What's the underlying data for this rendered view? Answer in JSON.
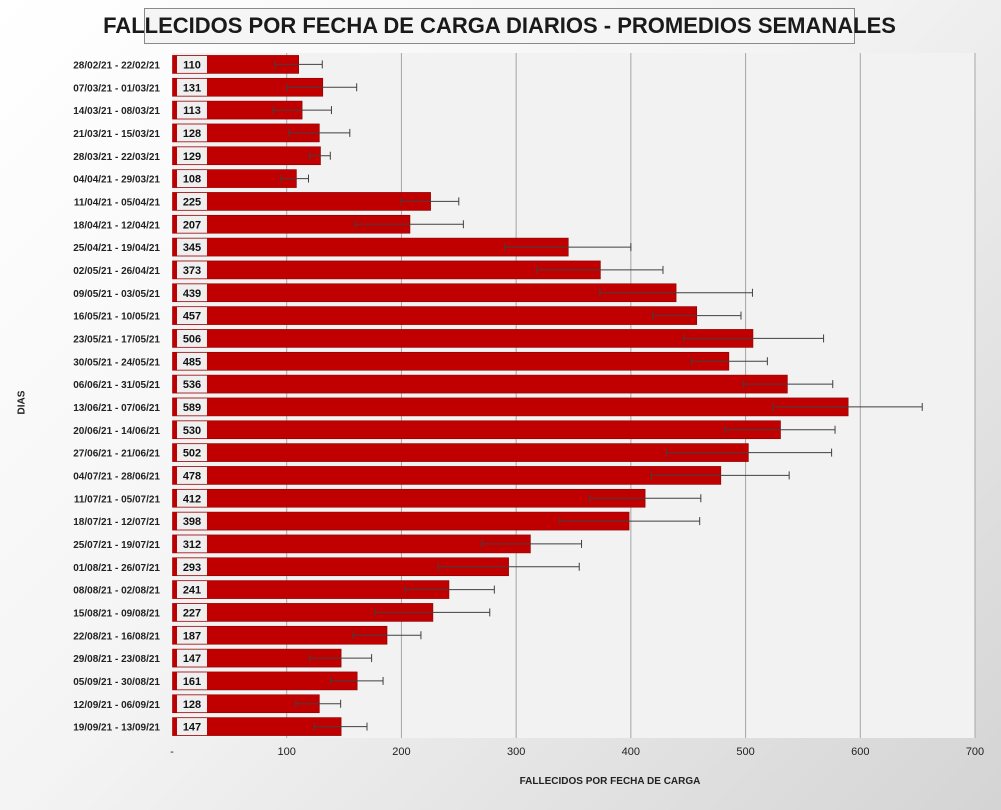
{
  "chart_data": {
    "type": "bar",
    "orientation": "horizontal",
    "title": "FALLECIDOS POR FECHA DE CARGA DIARIOS - PROMEDIOS SEMANALES",
    "xlabel": "FALLECIDOS POR FECHA DE CARGA",
    "ylabel": "DIAS",
    "xlim": [
      0,
      700
    ],
    "xticks": [
      "-",
      "100",
      "200",
      "300",
      "400",
      "500",
      "600",
      "700"
    ],
    "grid": true,
    "bar_color": "#c00000",
    "categories": [
      "28/02/21 - 22/02/21",
      "07/03/21 - 01/03/21",
      "14/03/21 - 08/03/21",
      "21/03/21 - 15/03/21",
      "28/03/21 - 22/03/21",
      "04/04/21 - 29/03/21",
      "11/04/21 - 05/04/21",
      "18/04/21 - 12/04/21",
      "25/04/21 - 19/04/21",
      "02/05/21 - 26/04/21",
      "09/05/21 - 03/05/21",
      "16/05/21 - 10/05/21",
      "23/05/21 - 17/05/21",
      "30/05/21 - 24/05/21",
      "06/06/21 - 31/05/21",
      "13/06/21 - 07/06/21",
      "20/06/21 - 14/06/21",
      "27/06/21 - 21/06/21",
      "04/07/21 - 28/06/21",
      "11/07/21 - 05/07/21",
      "18/07/21 - 12/07/21",
      "25/07/21 - 19/07/21",
      "01/08/21 - 26/07/21",
      "08/08/21 - 02/08/21",
      "15/08/21 - 09/08/21",
      "22/08/21 - 16/08/21",
      "29/08/21 - 23/08/21",
      "05/09/21 - 30/08/21",
      "12/09/21 - 06/09/21",
      "19/09/21 - 13/09/21"
    ],
    "values": [
      110,
      131,
      113,
      128,
      129,
      108,
      225,
      207,
      345,
      373,
      439,
      457,
      506,
      485,
      536,
      589,
      530,
      502,
      478,
      412,
      398,
      312,
      293,
      241,
      227,
      187,
      147,
      161,
      128,
      147
    ],
    "error_low": [
      90,
      100,
      88,
      102,
      120,
      95,
      200,
      160,
      290,
      318,
      373,
      419,
      446,
      453,
      498,
      524,
      482,
      431,
      418,
      364,
      338,
      270,
      232,
      203,
      177,
      158,
      120,
      138,
      108,
      124
    ],
    "error_high": [
      131,
      161,
      139,
      155,
      138,
      119,
      250,
      254,
      400,
      428,
      506,
      496,
      568,
      519,
      576,
      654,
      578,
      575,
      538,
      461,
      460,
      357,
      355,
      281,
      277,
      217,
      174,
      184,
      147,
      170
    ]
  }
}
